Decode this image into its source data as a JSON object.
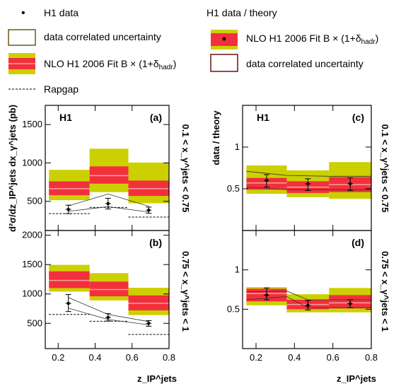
{
  "legend_left": {
    "data": "H1 data",
    "corr": "data correlated uncertainty",
    "nlo": "NLO H1 2006 Fit B",
    "nlo_sub": "hadr",
    "mc": "Rapgap"
  },
  "legend_right": {
    "title": "H1 data / theory",
    "nlo": "NLO H1 2006 Fit B",
    "nlo_sub": "hadr",
    "corr": "data correlated uncertainty"
  },
  "labels": {
    "ylabel_left": "d²σ/dz_IP^jets dx_γ^jets (pb)",
    "ylabel_right": "data / theory",
    "xlabel": "z_IP^jets",
    "h1": "H1",
    "row_top": "0.1 < x_γ^jets < 0.75",
    "row_bottom": "0.75 < x_γ^jets < 1"
  },
  "colors": {
    "red_band": "#f2303c",
    "yellow_band": "#ccd000",
    "nlo_line": "#f8a0a0",
    "corr_box": "#6b5a10",
    "corr_box_right": "#6b1010"
  },
  "chart_data": [
    {
      "type": "bar",
      "panel": "(a)",
      "bins": [
        [
          0.15,
          0.37
        ],
        [
          0.37,
          0.58
        ],
        [
          0.58,
          0.8
        ]
      ],
      "ylim": [
        120,
        1750
      ],
      "yticks": [
        500,
        1000,
        1500
      ],
      "xticks": [
        0.2,
        0.4,
        0.6,
        0.8
      ],
      "nlo": {
        "central": [
          665,
          835,
          665
        ],
        "red": [
          [
            580,
            760
          ],
          [
            730,
            955
          ],
          [
            570,
            770
          ]
        ],
        "yellow": [
          [
            515,
            910
          ],
          [
            620,
            1185
          ],
          [
            475,
            1005
          ]
        ]
      },
      "data": {
        "x": [
          0.255,
          0.47,
          0.69
        ],
        "y": [
          395,
          470,
          385
        ],
        "yerr": [
          [
            340,
            450
          ],
          [
            400,
            540
          ],
          [
            345,
            425
          ]
        ]
      },
      "corr_lower": [
        [
          0.255,
          370
        ],
        [
          0.47,
          430
        ],
        [
          0.69,
          360
        ]
      ],
      "corr_upper": [
        [
          0.255,
          440
        ],
        [
          0.47,
          595
        ],
        [
          0.69,
          435
        ]
      ],
      "rapgap": [
        340,
        420,
        295
      ]
    },
    {
      "type": "bar",
      "panel": "(b)",
      "bins": [
        [
          0.15,
          0.37
        ],
        [
          0.37,
          0.58
        ],
        [
          0.58,
          0.8
        ]
      ],
      "ylim": [
        70,
        2080
      ],
      "yticks": [
        500,
        1000,
        1500,
        2000
      ],
      "xticks": [
        0.2,
        0.4,
        0.6,
        0.8
      ],
      "nlo": {
        "central": [
          1230,
          1075,
          840
        ],
        "red": [
          [
            1100,
            1385
          ],
          [
            960,
            1210
          ],
          [
            720,
            975
          ]
        ],
        "yellow": [
          [
            1040,
            1495
          ],
          [
            890,
            1355
          ],
          [
            640,
            1105
          ]
        ]
      },
      "data": {
        "x": [
          0.255,
          0.47,
          0.69
        ],
        "y": [
          840,
          600,
          500
        ],
        "yerr": [
          [
            700,
            990
          ],
          [
            540,
            665
          ],
          [
            450,
            545
          ]
        ]
      },
      "corr_lower": [
        [
          0.255,
          760
        ],
        [
          0.47,
          565
        ],
        [
          0.69,
          475
        ]
      ],
      "corr_upper": [
        [
          0.255,
          940
        ],
        [
          0.47,
          650
        ],
        [
          0.69,
          530
        ]
      ],
      "rapgap": [
        650,
        535,
        310
      ]
    },
    {
      "type": "bar",
      "panel": "(c)",
      "bins": [
        [
          0.15,
          0.36
        ],
        [
          0.36,
          0.58
        ],
        [
          0.58,
          0.8
        ]
      ],
      "ylim": [
        0.0,
        1.5
      ],
      "yticks": [
        0.5,
        1
      ],
      "xticks": [
        0.2,
        0.4,
        0.6,
        0.8
      ],
      "nlo": {
        "central": [
          0.57,
          0.52,
          0.55
        ],
        "red": [
          [
            0.49,
            0.63
          ],
          [
            0.45,
            0.59
          ],
          [
            0.46,
            0.64
          ]
        ],
        "yellow": [
          [
            0.44,
            0.78
          ],
          [
            0.4,
            0.72
          ],
          [
            0.38,
            0.82
          ]
        ]
      },
      "data": {
        "x": [
          0.255,
          0.47,
          0.69
        ],
        "y": [
          0.6,
          0.56,
          0.56
        ],
        "yerr": [
          [
            0.52,
            0.67
          ],
          [
            0.48,
            0.62
          ],
          [
            0.48,
            0.63
          ]
        ]
      },
      "corr_lower": [
        [
          0.15,
          0.52
        ],
        [
          0.36,
          0.49
        ],
        [
          0.58,
          0.49
        ],
        [
          0.8,
          0.49
        ]
      ],
      "corr_upper": [
        [
          0.15,
          0.71
        ],
        [
          0.36,
          0.66
        ],
        [
          0.58,
          0.65
        ],
        [
          0.8,
          0.65
        ]
      ]
    },
    {
      "type": "bar",
      "panel": "(d)",
      "bins": [
        [
          0.15,
          0.36
        ],
        [
          0.36,
          0.58
        ],
        [
          0.58,
          0.8
        ]
      ],
      "ylim": [
        0.0,
        1.5
      ],
      "yticks": [
        0.5,
        1
      ],
      "xticks": [
        0.2,
        0.4,
        0.6,
        0.8
      ],
      "nlo": {
        "central": [
          0.7,
          0.56,
          0.58
        ],
        "red": [
          [
            0.6,
            0.76
          ],
          [
            0.5,
            0.62
          ],
          [
            0.51,
            0.68
          ]
        ],
        "yellow": [
          [
            0.55,
            0.78
          ],
          [
            0.46,
            0.69
          ],
          [
            0.46,
            0.77
          ]
        ]
      },
      "data": {
        "x": [
          0.255,
          0.47,
          0.69
        ],
        "y": [
          0.68,
          0.55,
          0.57
        ],
        "yerr": [
          [
            0.62,
            0.77
          ],
          [
            0.49,
            0.61
          ],
          [
            0.52,
            0.62
          ]
        ]
      },
      "corr_lower": [
        [
          0.15,
          0.62
        ],
        [
          0.36,
          0.66
        ],
        [
          0.47,
          0.52
        ],
        [
          0.8,
          0.52
        ]
      ],
      "corr_upper": [
        [
          0.15,
          0.72
        ],
        [
          0.36,
          0.73
        ],
        [
          0.47,
          0.62
        ],
        [
          0.8,
          0.62
        ]
      ]
    }
  ]
}
